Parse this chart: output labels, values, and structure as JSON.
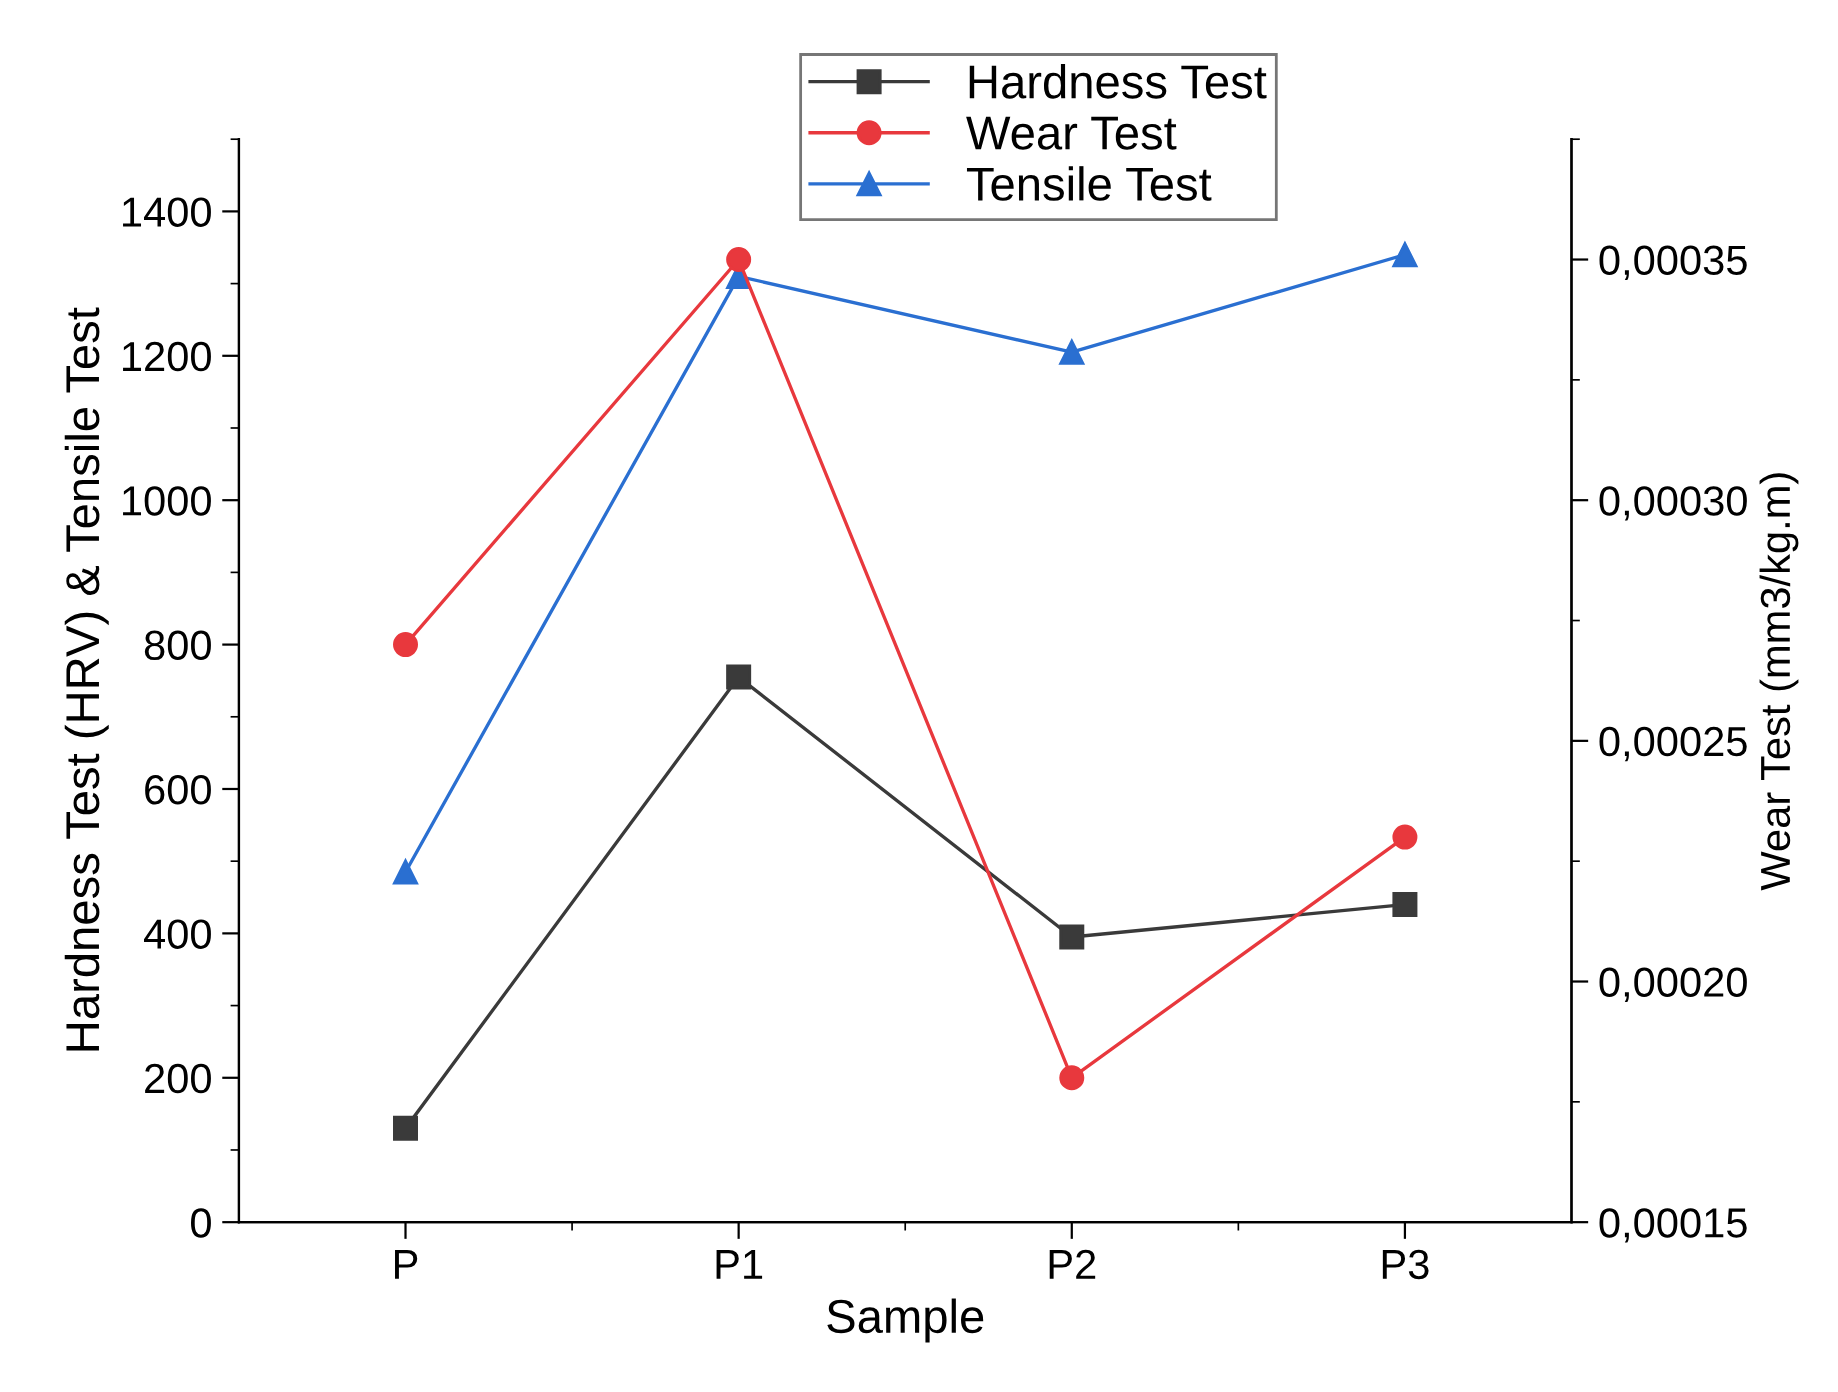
{
  "chart_data": {
    "type": "line",
    "xlabel": "Sample",
    "ylabel": "Hardness Test (HRV) & Tensile Test",
    "y2label": "Wear Test (mm3/kg.m)",
    "categories": [
      "P",
      "P1",
      "P2",
      "P3"
    ],
    "series": [
      {
        "name": "Hardness Test",
        "color": "#3a3a3a",
        "marker": "square",
        "values": [
          130,
          755,
          395,
          440
        ]
      },
      {
        "name": "Wear Test",
        "color": "#e8383d",
        "marker": "circle",
        "axis": "y2",
        "values": [
          0.00027,
          0.00035,
          0.00018,
          0.00023
        ]
      },
      {
        "name": "Tensile Test",
        "color": "#2a6fd1",
        "marker": "triangle",
        "values": [
          485,
          1310,
          1205,
          1340
        ]
      }
    ],
    "ylim": [
      0,
      1500
    ],
    "yticks": [
      0,
      200,
      400,
      600,
      800,
      1000,
      1200,
      1400
    ],
    "y2lim": [
      0.00015,
      0.000375
    ],
    "y2ticks": [
      {
        "value": 0.00015,
        "label": "0,00015"
      },
      {
        "value": 0.0002,
        "label": "0,00020"
      },
      {
        "value": 0.00025,
        "label": "0,00025"
      },
      {
        "value": 0.0003,
        "label": "0,00030"
      },
      {
        "value": 0.00035,
        "label": "0,00035"
      }
    ],
    "grid": false,
    "legend": "top",
    "line_style": "solid"
  }
}
